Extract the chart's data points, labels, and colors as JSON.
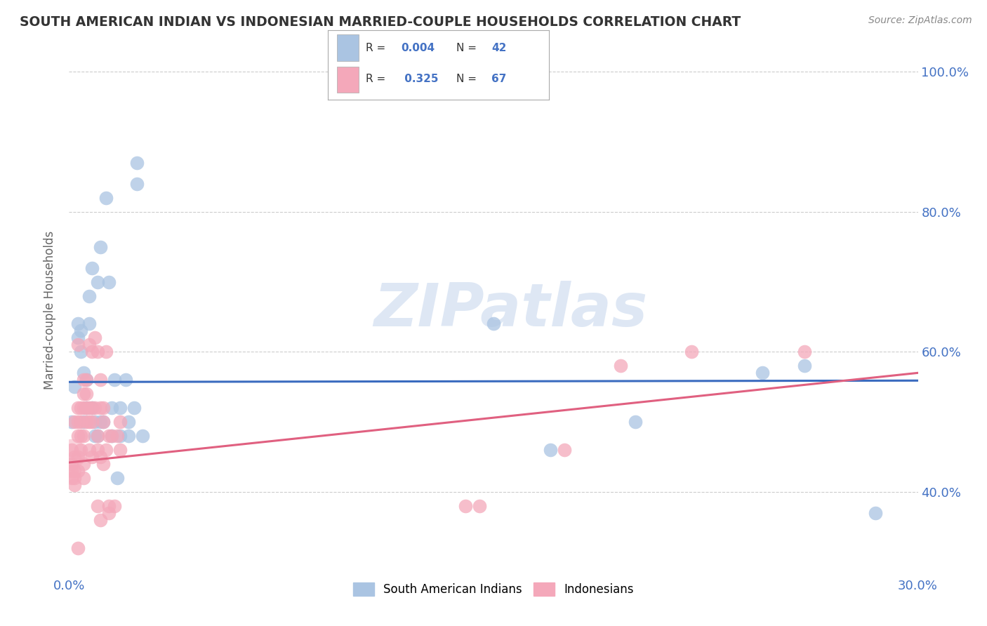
{
  "title": "SOUTH AMERICAN INDIAN VS INDONESIAN MARRIED-COUPLE HOUSEHOLDS CORRELATION CHART",
  "source": "Source: ZipAtlas.com",
  "ylabel": "Married-couple Households",
  "ytick_labels": [
    "100.0%",
    "80.0%",
    "60.0%",
    "40.0%"
  ],
  "ytick_values": [
    1.0,
    0.8,
    0.6,
    0.4
  ],
  "xlim": [
    0.0,
    0.3
  ],
  "ylim": [
    0.28,
    1.04
  ],
  "watermark": "ZIPatlas",
  "blue_R": "0.004",
  "blue_N": "42",
  "pink_R": "0.325",
  "pink_N": "67",
  "blue_color": "#aac4e2",
  "pink_color": "#f4a8ba",
  "blue_line_color": "#3a6bbf",
  "pink_line_color": "#e06080",
  "grid_color": "#cccccc",
  "background_color": "#ffffff",
  "title_color": "#333333",
  "axis_label_color": "#4472c4",
  "blue_scatter": [
    [
      0.001,
      0.5
    ],
    [
      0.002,
      0.55
    ],
    [
      0.003,
      0.62
    ],
    [
      0.003,
      0.64
    ],
    [
      0.004,
      0.63
    ],
    [
      0.004,
      0.6
    ],
    [
      0.005,
      0.57
    ],
    [
      0.005,
      0.5
    ],
    [
      0.006,
      0.56
    ],
    [
      0.006,
      0.52
    ],
    [
      0.007,
      0.68
    ],
    [
      0.007,
      0.64
    ],
    [
      0.008,
      0.72
    ],
    [
      0.008,
      0.52
    ],
    [
      0.009,
      0.5
    ],
    [
      0.009,
      0.48
    ],
    [
      0.01,
      0.7
    ],
    [
      0.01,
      0.48
    ],
    [
      0.011,
      0.75
    ],
    [
      0.011,
      0.5
    ],
    [
      0.012,
      0.5
    ],
    [
      0.013,
      0.82
    ],
    [
      0.014,
      0.7
    ],
    [
      0.015,
      0.52
    ],
    [
      0.015,
      0.48
    ],
    [
      0.016,
      0.56
    ],
    [
      0.017,
      0.42
    ],
    [
      0.018,
      0.52
    ],
    [
      0.018,
      0.48
    ],
    [
      0.02,
      0.56
    ],
    [
      0.021,
      0.5
    ],
    [
      0.021,
      0.48
    ],
    [
      0.023,
      0.52
    ],
    [
      0.024,
      0.87
    ],
    [
      0.024,
      0.84
    ],
    [
      0.026,
      0.48
    ],
    [
      0.15,
      0.64
    ],
    [
      0.17,
      0.46
    ],
    [
      0.2,
      0.5
    ],
    [
      0.245,
      0.57
    ],
    [
      0.26,
      0.58
    ],
    [
      0.285,
      0.37
    ]
  ],
  "pink_scatter": [
    [
      0.001,
      0.46
    ],
    [
      0.001,
      0.44
    ],
    [
      0.001,
      0.43
    ],
    [
      0.001,
      0.42
    ],
    [
      0.002,
      0.5
    ],
    [
      0.002,
      0.45
    ],
    [
      0.002,
      0.43
    ],
    [
      0.002,
      0.42
    ],
    [
      0.002,
      0.41
    ],
    [
      0.003,
      0.61
    ],
    [
      0.003,
      0.52
    ],
    [
      0.003,
      0.5
    ],
    [
      0.003,
      0.48
    ],
    [
      0.003,
      0.45
    ],
    [
      0.003,
      0.43
    ],
    [
      0.003,
      0.32
    ],
    [
      0.004,
      0.52
    ],
    [
      0.004,
      0.5
    ],
    [
      0.004,
      0.48
    ],
    [
      0.004,
      0.46
    ],
    [
      0.005,
      0.56
    ],
    [
      0.005,
      0.54
    ],
    [
      0.005,
      0.52
    ],
    [
      0.005,
      0.48
    ],
    [
      0.005,
      0.44
    ],
    [
      0.005,
      0.42
    ],
    [
      0.006,
      0.56
    ],
    [
      0.006,
      0.54
    ],
    [
      0.006,
      0.52
    ],
    [
      0.006,
      0.5
    ],
    [
      0.007,
      0.61
    ],
    [
      0.007,
      0.52
    ],
    [
      0.007,
      0.5
    ],
    [
      0.007,
      0.46
    ],
    [
      0.008,
      0.6
    ],
    [
      0.008,
      0.52
    ],
    [
      0.008,
      0.5
    ],
    [
      0.008,
      0.45
    ],
    [
      0.009,
      0.62
    ],
    [
      0.009,
      0.52
    ],
    [
      0.01,
      0.6
    ],
    [
      0.01,
      0.48
    ],
    [
      0.01,
      0.46
    ],
    [
      0.01,
      0.38
    ],
    [
      0.011,
      0.56
    ],
    [
      0.011,
      0.52
    ],
    [
      0.011,
      0.45
    ],
    [
      0.011,
      0.36
    ],
    [
      0.012,
      0.52
    ],
    [
      0.012,
      0.5
    ],
    [
      0.012,
      0.44
    ],
    [
      0.013,
      0.6
    ],
    [
      0.013,
      0.46
    ],
    [
      0.014,
      0.48
    ],
    [
      0.014,
      0.38
    ],
    [
      0.014,
      0.37
    ],
    [
      0.015,
      0.48
    ],
    [
      0.016,
      0.38
    ],
    [
      0.017,
      0.48
    ],
    [
      0.018,
      0.5
    ],
    [
      0.018,
      0.46
    ],
    [
      0.14,
      0.38
    ],
    [
      0.145,
      0.38
    ],
    [
      0.175,
      0.46
    ],
    [
      0.195,
      0.58
    ],
    [
      0.22,
      0.6
    ],
    [
      0.26,
      0.6
    ]
  ],
  "blue_trendline": [
    [
      0.0,
      0.557
    ],
    [
      0.3,
      0.559
    ]
  ],
  "pink_trendline": [
    [
      0.0,
      0.442
    ],
    [
      0.3,
      0.57
    ]
  ]
}
